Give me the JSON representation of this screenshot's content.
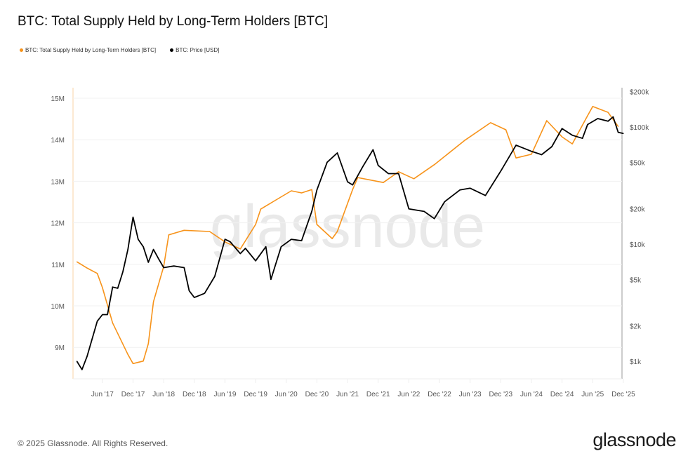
{
  "title": "BTC: Total Supply Held by Long-Term Holders [BTC]",
  "footer": {
    "copyright": "© 2025 Glassnode. All Rights Reserved.",
    "logo": "glassnode",
    "watermark": "glassnode"
  },
  "chart_data": {
    "type": "line",
    "title": "BTC: Total Supply Held by Long-Term Holders [BTC]",
    "legend_position": "top-left",
    "grid": true,
    "x_ticks": [
      "Jun '17",
      "Dec '17",
      "Jun '18",
      "Dec '18",
      "Jun '19",
      "Dec '19",
      "Jun '20",
      "Dec '20",
      "Jun '21",
      "Dec '21",
      "Jun '22",
      "Dec '22",
      "Jun '23",
      "Dec '23",
      "Jun '24",
      "Dec '24",
      "Jun '25",
      "Dec '25"
    ],
    "y_left": {
      "ticks": [
        "9M",
        "10M",
        "11M",
        "12M",
        "13M",
        "14M",
        "15M"
      ],
      "tick_values": [
        9,
        10,
        11,
        12,
        13,
        14,
        15
      ],
      "range": [
        8.25,
        15.25
      ],
      "unit": "M BTC"
    },
    "y_right": {
      "scale": "log",
      "ticks": [
        "$1k",
        "$2k",
        "$5k",
        "$10k",
        "$20k",
        "$50k",
        "$100k",
        "$200k"
      ],
      "tick_values": [
        1000,
        2000,
        5000,
        10000,
        20000,
        50000,
        100000,
        200000
      ],
      "range": [
        700,
        250000
      ]
    },
    "series": [
      {
        "name": "BTC: Total Supply Held by Long-Term Holders [BTC]",
        "axis": "left",
        "color": "#f7931a",
        "x": [
          "2017-01",
          "2017-03",
          "2017-05",
          "2017-06",
          "2017-08",
          "2017-11",
          "2017-12",
          "2018-02",
          "2018-03",
          "2018-04",
          "2018-06",
          "2018-07",
          "2018-10",
          "2019-03",
          "2019-06",
          "2019-09",
          "2019-12",
          "2020-01",
          "2020-04",
          "2020-07",
          "2020-09",
          "2020-11",
          "2020-12",
          "2021-03",
          "2021-04",
          "2021-07",
          "2021-08",
          "2022-01",
          "2022-04",
          "2022-07",
          "2022-11",
          "2023-05",
          "2023-10",
          "2024-01",
          "2024-03",
          "2024-06",
          "2024-09",
          "2024-12",
          "2025-02",
          "2025-05",
          "2025-06",
          "2025-09",
          "2025-11"
        ],
        "y": [
          11.06,
          10.91,
          10.78,
          10.44,
          9.59,
          8.83,
          8.61,
          8.67,
          9.09,
          10.1,
          10.95,
          11.71,
          11.82,
          11.79,
          11.54,
          11.37,
          11.96,
          12.33,
          12.55,
          12.77,
          12.72,
          12.8,
          11.96,
          11.62,
          11.79,
          12.8,
          13.09,
          12.97,
          13.23,
          13.06,
          13.4,
          13.99,
          14.41,
          14.24,
          13.56,
          13.65,
          14.46,
          14.07,
          13.9,
          14.58,
          14.8,
          14.66,
          14.32
        ]
      },
      {
        "name": "BTC: Price [USD]",
        "axis": "right",
        "color": "#000000",
        "x": [
          "2017-01",
          "2017-02",
          "2017-03",
          "2017-05",
          "2017-06",
          "2017-07",
          "2017-08",
          "2017-09",
          "2017-10",
          "2017-11",
          "2017-12",
          "2018-01",
          "2018-02",
          "2018-03",
          "2018-04",
          "2018-05",
          "2018-06",
          "2018-08",
          "2018-10",
          "2018-11",
          "2018-12",
          "2019-02",
          "2019-04",
          "2019-06",
          "2019-07",
          "2019-09",
          "2019-10",
          "2019-12",
          "2020-02",
          "2020-03",
          "2020-05",
          "2020-07",
          "2020-09",
          "2020-11",
          "2020-12",
          "2021-02",
          "2021-04",
          "2021-06",
          "2021-07",
          "2021-09",
          "2021-11",
          "2021-12",
          "2022-02",
          "2022-04",
          "2022-06",
          "2022-09",
          "2022-11",
          "2023-01",
          "2023-04",
          "2023-06",
          "2023-09",
          "2023-12",
          "2024-03",
          "2024-06",
          "2024-08",
          "2024-10",
          "2024-12",
          "2025-02",
          "2025-04",
          "2025-05",
          "2025-07",
          "2025-09",
          "2025-10",
          "2025-11",
          "2025-12"
        ],
        "y": [
          1000,
          850,
          1100,
          2200,
          2500,
          2500,
          4300,
          4200,
          5800,
          9000,
          17000,
          11000,
          9500,
          7000,
          9000,
          7500,
          6300,
          6500,
          6300,
          4000,
          3500,
          3800,
          5300,
          11000,
          10500,
          8300,
          9200,
          7200,
          9500,
          5000,
          9500,
          11000,
          10700,
          19000,
          29000,
          50000,
          60000,
          34000,
          32000,
          46000,
          64000,
          47000,
          40000,
          40000,
          20000,
          19000,
          16500,
          23000,
          29000,
          30000,
          26000,
          42000,
          70000,
          62000,
          58000,
          68000,
          97000,
          85000,
          80000,
          105000,
          118000,
          112000,
          122000,
          90000,
          88000
        ]
      }
    ]
  }
}
